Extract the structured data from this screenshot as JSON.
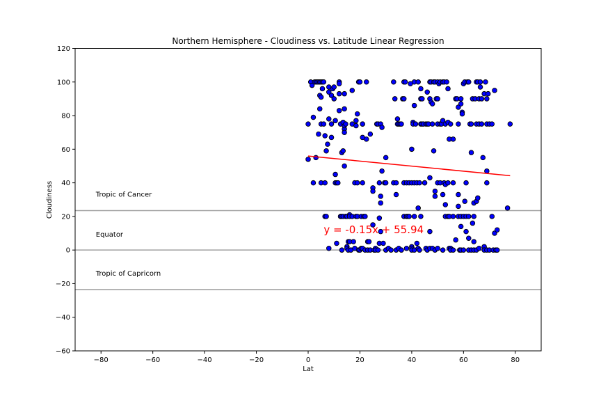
{
  "chart_data": {
    "type": "scatter",
    "title": "Northern Hemisphere - Cloudiness vs. Latitude Linear Regression",
    "xlabel": "Lat",
    "ylabel": "Cloudiness",
    "xlim": [
      -90,
      90
    ],
    "ylim": [
      -60,
      120
    ],
    "xticks": [
      -80,
      -60,
      -40,
      -20,
      0,
      20,
      40,
      60,
      80
    ],
    "yticks": [
      -60,
      -40,
      -20,
      0,
      20,
      40,
      60,
      80,
      100,
      120
    ],
    "tick_labels_x": [
      "−80",
      "−60",
      "−40",
      "−20",
      "0",
      "20",
      "40",
      "60",
      "80"
    ],
    "tick_labels_y": [
      "−60",
      "−40",
      "−20",
      "0",
      "20",
      "40",
      "60",
      "80",
      "100",
      "120"
    ],
    "grid": false,
    "colors": {
      "marker_fill": "#0000ff",
      "marker_edge": "#000000",
      "regression": "#ff0000",
      "reference_line": "#a0a0a0"
    },
    "regression": {
      "slope": -0.15,
      "intercept": 55.94,
      "x_range": [
        0,
        78
      ],
      "label": "y = -0.15x + 55.94",
      "label_x": 6,
      "label_y": 10
    },
    "reference_lines": [
      {
        "name": "Tropic of Cancer",
        "y": 23.5
      },
      {
        "name": "Equator",
        "y": 0
      },
      {
        "name": "Tropic of Capricorn",
        "y": -23.5
      }
    ],
    "reference_label_x": -82,
    "points": [
      [
        0,
        54
      ],
      [
        0,
        75
      ],
      [
        1,
        100
      ],
      [
        1.5,
        98
      ],
      [
        2,
        40
      ],
      [
        2,
        79
      ],
      [
        3,
        55
      ],
      [
        2.5,
        100
      ],
      [
        3,
        100
      ],
      [
        3.5,
        100
      ],
      [
        4,
        100
      ],
      [
        4.5,
        100
      ],
      [
        5,
        100
      ],
      [
        5.5,
        100
      ],
      [
        6,
        100
      ],
      [
        4,
        69
      ],
      [
        4.5,
        84
      ],
      [
        4.5,
        92
      ],
      [
        5,
        75
      ],
      [
        5,
        91
      ],
      [
        5,
        40
      ],
      [
        5.5,
        96
      ],
      [
        6,
        75
      ],
      [
        6.5,
        40
      ],
      [
        6.5,
        68
      ],
      [
        6.5,
        20
      ],
      [
        7,
        59
      ],
      [
        7,
        20
      ],
      [
        7.5,
        63
      ],
      [
        8,
        1
      ],
      [
        8,
        78
      ],
      [
        8,
        94
      ],
      [
        8,
        97
      ],
      [
        9,
        92
      ],
      [
        9,
        75
      ],
      [
        9,
        67
      ],
      [
        9.5,
        96
      ],
      [
        10,
        97
      ],
      [
        10,
        90
      ],
      [
        10.5,
        77
      ],
      [
        10.5,
        40
      ],
      [
        10.5,
        45
      ],
      [
        11,
        4
      ],
      [
        11,
        40
      ],
      [
        11.5,
        40
      ],
      [
        12,
        100
      ],
      [
        12,
        99
      ],
      [
        12,
        93
      ],
      [
        12,
        83
      ],
      [
        12.5,
        75
      ],
      [
        12.5,
        20
      ],
      [
        13,
        20
      ],
      [
        13,
        0
      ],
      [
        13,
        58
      ],
      [
        13.5,
        76
      ],
      [
        13.5,
        59
      ],
      [
        13.5,
        20
      ],
      [
        14,
        93
      ],
      [
        14,
        84
      ],
      [
        14,
        72
      ],
      [
        14,
        70
      ],
      [
        14,
        50
      ],
      [
        14,
        74
      ],
      [
        14.5,
        75
      ],
      [
        14.5,
        20
      ],
      [
        15,
        20
      ],
      [
        15,
        2
      ],
      [
        15,
        1
      ],
      [
        15.5,
        0
      ],
      [
        15.5,
        5
      ],
      [
        16,
        21
      ],
      [
        16,
        20
      ],
      [
        16,
        5
      ],
      [
        16.5,
        0
      ],
      [
        17,
        95
      ],
      [
        17,
        75
      ],
      [
        17,
        20
      ],
      [
        17.5,
        5
      ],
      [
        18,
        40
      ],
      [
        18,
        1
      ],
      [
        18.5,
        77
      ],
      [
        18.5,
        74
      ],
      [
        18.5,
        20
      ],
      [
        19,
        81
      ],
      [
        19,
        20
      ],
      [
        19,
        40
      ],
      [
        19.5,
        0
      ],
      [
        19.5,
        100
      ],
      [
        20,
        100
      ],
      [
        20,
        0
      ],
      [
        20.5,
        20
      ],
      [
        20.5,
        1
      ],
      [
        21,
        75
      ],
      [
        21,
        67
      ],
      [
        21,
        75
      ],
      [
        21,
        40
      ],
      [
        21,
        1
      ],
      [
        21.5,
        20
      ],
      [
        22,
        20
      ],
      [
        22,
        0
      ],
      [
        22.5,
        66
      ],
      [
        22.5,
        100
      ],
      [
        23,
        5
      ],
      [
        23,
        0
      ],
      [
        23.5,
        5
      ],
      [
        24,
        69
      ],
      [
        24,
        0
      ],
      [
        25,
        37
      ],
      [
        25,
        35
      ],
      [
        25,
        15
      ],
      [
        25.5,
        0
      ],
      [
        26,
        1
      ],
      [
        26,
        0
      ],
      [
        26.5,
        75
      ],
      [
        27,
        75
      ],
      [
        27,
        0
      ],
      [
        27.5,
        40
      ],
      [
        27.5,
        4
      ],
      [
        27.5,
        19
      ],
      [
        28,
        75
      ],
      [
        28,
        32
      ],
      [
        28,
        28
      ],
      [
        28,
        11
      ],
      [
        28.5,
        73
      ],
      [
        28.5,
        47
      ],
      [
        29,
        4
      ],
      [
        29.5,
        40
      ],
      [
        30,
        55
      ],
      [
        30,
        40
      ],
      [
        30,
        0
      ],
      [
        31,
        1
      ],
      [
        32,
        0
      ],
      [
        33,
        40
      ],
      [
        33,
        100
      ],
      [
        33.5,
        90
      ],
      [
        34,
        33
      ],
      [
        34,
        40
      ],
      [
        34,
        0
      ],
      [
        34.5,
        78
      ],
      [
        34.5,
        75
      ],
      [
        35,
        75
      ],
      [
        35,
        1
      ],
      [
        35.5,
        75
      ],
      [
        36,
        0
      ],
      [
        36,
        75
      ],
      [
        36.5,
        90
      ],
      [
        37,
        100
      ],
      [
        37,
        40
      ],
      [
        37,
        90
      ],
      [
        37,
        20
      ],
      [
        37.5,
        100
      ],
      [
        38,
        40
      ],
      [
        38,
        20
      ],
      [
        38,
        1
      ],
      [
        38.5,
        20
      ],
      [
        39,
        40
      ],
      [
        39,
        20
      ],
      [
        39.5,
        99
      ],
      [
        40,
        60
      ],
      [
        40,
        40
      ],
      [
        40,
        2
      ],
      [
        40,
        1
      ],
      [
        40,
        0
      ],
      [
        40.5,
        76
      ],
      [
        40.5,
        75
      ],
      [
        41,
        100
      ],
      [
        41,
        86
      ],
      [
        41,
        40
      ],
      [
        41,
        20
      ],
      [
        41,
        0
      ],
      [
        41.5,
        75
      ],
      [
        42,
        40
      ],
      [
        42,
        4
      ],
      [
        42.5,
        100
      ],
      [
        42.5,
        25
      ],
      [
        42.5,
        1
      ],
      [
        43,
        40
      ],
      [
        43,
        0
      ],
      [
        43.5,
        96
      ],
      [
        43.5,
        90
      ],
      [
        43.5,
        75
      ],
      [
        43.5,
        20
      ],
      [
        44,
        75
      ],
      [
        44,
        90
      ],
      [
        44.5,
        75
      ],
      [
        45,
        40
      ],
      [
        45,
        40
      ],
      [
        45.5,
        75
      ],
      [
        45.5,
        1
      ],
      [
        46,
        94
      ],
      [
        46,
        75
      ],
      [
        46,
        0
      ],
      [
        46.5,
        75
      ],
      [
        47,
        100
      ],
      [
        47,
        90
      ],
      [
        47,
        43
      ],
      [
        47,
        11
      ],
      [
        47,
        1
      ],
      [
        47.5,
        100
      ],
      [
        47.5,
        88
      ],
      [
        48,
        87
      ],
      [
        48,
        75
      ],
      [
        48,
        1
      ],
      [
        48.5,
        59
      ],
      [
        48.5,
        100
      ],
      [
        49,
        100
      ],
      [
        49,
        35
      ],
      [
        49,
        32
      ],
      [
        49,
        0
      ],
      [
        49.5,
        90
      ],
      [
        50,
        100
      ],
      [
        50,
        90
      ],
      [
        50,
        75
      ],
      [
        50,
        40
      ],
      [
        50,
        1
      ],
      [
        50.5,
        99
      ],
      [
        51,
        100
      ],
      [
        51,
        75
      ],
      [
        51,
        40
      ],
      [
        51.5,
        75
      ],
      [
        52,
        100
      ],
      [
        52,
        77
      ],
      [
        52,
        33
      ],
      [
        52,
        0
      ],
      [
        52.5,
        100
      ],
      [
        52.5,
        40
      ],
      [
        53,
        75
      ],
      [
        53,
        39
      ],
      [
        53,
        27
      ],
      [
        53,
        20
      ],
      [
        53.5,
        100
      ],
      [
        54,
        96
      ],
      [
        54,
        76
      ],
      [
        54,
        40
      ],
      [
        54,
        20
      ],
      [
        54.5,
        66
      ],
      [
        54.5,
        20
      ],
      [
        54.5,
        1
      ],
      [
        55,
        75
      ],
      [
        55,
        1
      ],
      [
        55,
        0
      ],
      [
        56,
        66
      ],
      [
        56,
        40
      ],
      [
        56,
        20
      ],
      [
        56,
        0
      ],
      [
        57,
        90
      ],
      [
        57,
        6
      ],
      [
        57.5,
        90
      ],
      [
        58,
        85
      ],
      [
        58,
        75
      ],
      [
        58,
        33
      ],
      [
        58,
        26
      ],
      [
        58,
        20
      ],
      [
        58.5,
        0
      ],
      [
        59,
        90
      ],
      [
        59,
        87
      ],
      [
        59,
        20
      ],
      [
        59,
        14
      ],
      [
        59,
        0
      ],
      [
        59.5,
        82
      ],
      [
        59.5,
        81
      ],
      [
        60,
        99
      ],
      [
        60,
        20
      ],
      [
        60,
        0
      ],
      [
        60.5,
        100
      ],
      [
        60.5,
        29
      ],
      [
        61,
        40
      ],
      [
        61,
        20
      ],
      [
        61,
        11
      ],
      [
        61.5,
        100
      ],
      [
        62,
        100
      ],
      [
        62,
        20
      ],
      [
        62,
        7
      ],
      [
        62,
        0
      ],
      [
        62.5,
        75
      ],
      [
        63,
        58
      ],
      [
        63,
        75
      ],
      [
        63,
        0
      ],
      [
        63.5,
        90
      ],
      [
        63.5,
        16
      ],
      [
        64,
        28
      ],
      [
        64,
        20
      ],
      [
        64,
        5
      ],
      [
        64,
        0
      ],
      [
        64.5,
        90
      ],
      [
        65,
        100
      ],
      [
        65,
        75
      ],
      [
        65,
        29
      ],
      [
        65,
        0
      ],
      [
        65.5,
        100
      ],
      [
        65.5,
        31
      ],
      [
        66,
        75
      ],
      [
        66,
        90
      ],
      [
        66,
        1
      ],
      [
        66.5,
        100
      ],
      [
        66.5,
        97
      ],
      [
        67,
        90
      ],
      [
        67,
        75
      ],
      [
        67.5,
        55
      ],
      [
        68,
        93
      ],
      [
        68,
        2
      ],
      [
        68,
        0
      ],
      [
        68.5,
        100
      ],
      [
        69,
        90
      ],
      [
        69,
        75
      ],
      [
        69,
        40
      ],
      [
        69,
        47
      ],
      [
        69,
        0
      ],
      [
        69.5,
        93
      ],
      [
        70,
        75
      ],
      [
        70,
        0
      ],
      [
        71,
        75
      ],
      [
        71,
        20
      ],
      [
        71.5,
        0
      ],
      [
        72,
        95
      ],
      [
        72,
        10
      ],
      [
        72.5,
        0
      ],
      [
        73,
        0
      ],
      [
        73,
        12
      ],
      [
        77,
        25
      ],
      [
        78,
        75
      ]
    ]
  }
}
